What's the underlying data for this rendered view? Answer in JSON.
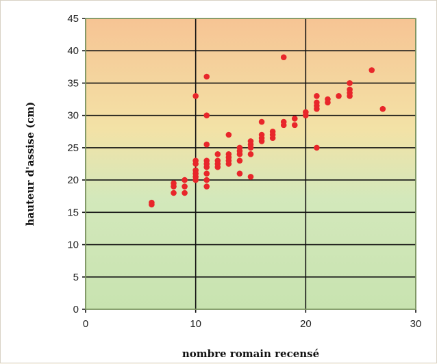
{
  "chart_data": {
    "type": "scatter",
    "title": "",
    "xlabel": "nombre romain recensé",
    "ylabel": "hauteur d'assise (cm)",
    "xlim": [
      0,
      30
    ],
    "ylim": [
      0,
      45
    ],
    "xticks": [
      "0",
      "10",
      "20",
      "30"
    ],
    "yticks": [
      "0",
      "5",
      "10",
      "15",
      "20",
      "25",
      "30",
      "35",
      "40",
      "45"
    ],
    "grid": true,
    "legend": "none",
    "marker_color": "#e8262a",
    "background_gradient": [
      "#f6c494",
      "#f3e2a6",
      "#d3e8bb",
      "#c8e3b0"
    ],
    "series": [
      {
        "points": [
          [
            6,
            16.2
          ],
          [
            6,
            16.5
          ],
          [
            8,
            18
          ],
          [
            8,
            19
          ],
          [
            8,
            19.5
          ],
          [
            9,
            18
          ],
          [
            9,
            19
          ],
          [
            9,
            20
          ],
          [
            10,
            20
          ],
          [
            10,
            20.5
          ],
          [
            10,
            21
          ],
          [
            10,
            21.5
          ],
          [
            10,
            22.5
          ],
          [
            10,
            23
          ],
          [
            10,
            33
          ],
          [
            11,
            19
          ],
          [
            11,
            20
          ],
          [
            11,
            21
          ],
          [
            11,
            22
          ],
          [
            11,
            22.5
          ],
          [
            11,
            23
          ],
          [
            11,
            25.5
          ],
          [
            11,
            30
          ],
          [
            11,
            36
          ],
          [
            12,
            22
          ],
          [
            12,
            22.5
          ],
          [
            12,
            23
          ],
          [
            12,
            24
          ],
          [
            13,
            22.5
          ],
          [
            13,
            23
          ],
          [
            13,
            23.5
          ],
          [
            13,
            24
          ],
          [
            13,
            27
          ],
          [
            14,
            21
          ],
          [
            14,
            23
          ],
          [
            14,
            24
          ],
          [
            14,
            24.5
          ],
          [
            14,
            25
          ],
          [
            15,
            20.5
          ],
          [
            15,
            24
          ],
          [
            15,
            25
          ],
          [
            15,
            25.5
          ],
          [
            15,
            26
          ],
          [
            16,
            26
          ],
          [
            16,
            26.5
          ],
          [
            16,
            27
          ],
          [
            16,
            29
          ],
          [
            17,
            26.5
          ],
          [
            17,
            27
          ],
          [
            17,
            27.5
          ],
          [
            18,
            28.5
          ],
          [
            18,
            29
          ],
          [
            18,
            39
          ],
          [
            19,
            28.5
          ],
          [
            19,
            29.5
          ],
          [
            20,
            30
          ],
          [
            20,
            30.5
          ],
          [
            21,
            25
          ],
          [
            21,
            31
          ],
          [
            21,
            31.5
          ],
          [
            21,
            32
          ],
          [
            21,
            33
          ],
          [
            22,
            32
          ],
          [
            22,
            32.5
          ],
          [
            23,
            33
          ],
          [
            24,
            33
          ],
          [
            24,
            33.5
          ],
          [
            24,
            34
          ],
          [
            24,
            35
          ],
          [
            26,
            37
          ],
          [
            27,
            31
          ]
        ]
      }
    ]
  }
}
